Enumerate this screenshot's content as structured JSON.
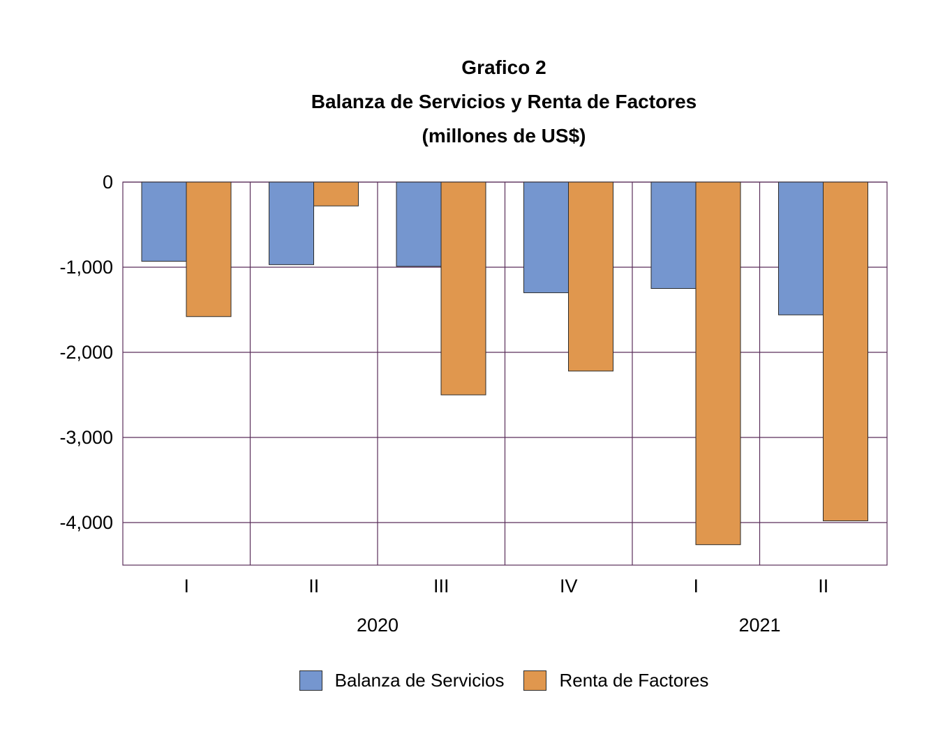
{
  "chart_data": {
    "type": "bar",
    "title": "Grafico 2",
    "subtitle": "Balanza de Servicios y Renta de Factores",
    "unit_label": "(millones de US$)",
    "categories": [
      "I",
      "II",
      "III",
      "IV",
      "I",
      "II"
    ],
    "year_groups": [
      {
        "label": "2020",
        "start": 0,
        "end": 3
      },
      {
        "label": "2021",
        "start": 4,
        "end": 5
      }
    ],
    "series": [
      {
        "name": "Balanza de Servicios",
        "color": "#7596cf",
        "values": [
          -930,
          -970,
          -990,
          -1300,
          -1250,
          -1560
        ]
      },
      {
        "name": "Renta de Factores",
        "color": "#e0974e",
        "values": [
          -1580,
          -280,
          -2500,
          -2220,
          -4260,
          -3980
        ]
      }
    ],
    "ylim": [
      -4500,
      0
    ],
    "yticks": [
      0,
      -1000,
      -2000,
      -3000,
      -4000
    ],
    "ytick_labels": [
      "0",
      "-1,000",
      "-2,000",
      "-3,000",
      "-4,000"
    ],
    "grid": true,
    "legend_position": "bottom",
    "gridline_color": "#5a2e5a"
  }
}
